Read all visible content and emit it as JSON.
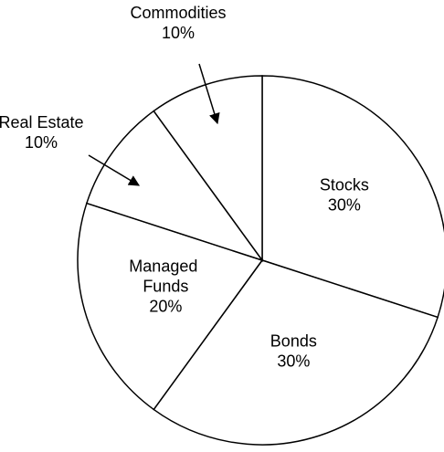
{
  "chart_data": {
    "type": "pie",
    "categories": [
      "Stocks",
      "Bonds",
      "Managed Funds",
      "Real Estate",
      "Commodities"
    ],
    "values": [
      30,
      30,
      20,
      10,
      10
    ],
    "value_labels": [
      "30%",
      "30%",
      "20%",
      "10%",
      "10%"
    ],
    "color": "#ffffff",
    "edge_color": "#000000"
  }
}
